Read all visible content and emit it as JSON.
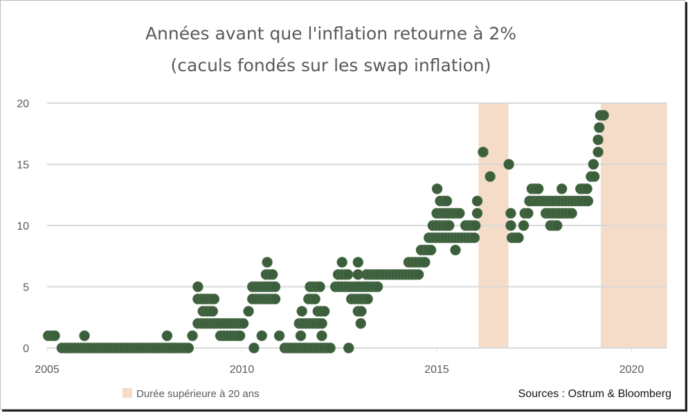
{
  "chart_data": {
    "type": "scatter",
    "title": "Années avant que l'inflation retourne à 2%",
    "subtitle": "(caculs fondés sur les swap inflation)",
    "xlabel": "",
    "ylabel": "",
    "xlim": [
      2005,
      2020.9
    ],
    "ylim": [
      0,
      20
    ],
    "x_ticks": [
      2005,
      2010,
      2015,
      2020
    ],
    "x_tick_labels": [
      "2005",
      "2010",
      "2015",
      "2020"
    ],
    "y_ticks": [
      0,
      5,
      10,
      15,
      20
    ],
    "y_tick_labels": [
      "0",
      "5",
      "10",
      "15",
      "20"
    ],
    "grid": "horizontal",
    "legend": {
      "position": "bottom-left",
      "entries": [
        {
          "label": "Durée supérieure à 20 ans",
          "color": "#f5dcc8"
        }
      ]
    },
    "source": "Sources : Ostrum & Bloomberg",
    "colors": {
      "points": "#3b5e3b",
      "shade": "#f5dcc8",
      "grid": "#d9d9d9"
    },
    "shaded_periods": [
      [
        2016.07,
        2016.84
      ],
      [
        2019.21,
        2020.91
      ]
    ],
    "point_step_years": 0.0833,
    "series_runs": [
      {
        "y": 1,
        "from": 2005.03,
        "to": 2005.27
      },
      {
        "y": 0,
        "from": 2005.38,
        "to": 2008.7
      },
      {
        "y": 1,
        "from": 2005.96,
        "to": 2006.03
      },
      {
        "y": 1,
        "from": 2008.08,
        "to": 2008.08
      },
      {
        "y": 1,
        "from": 2008.73,
        "to": 2008.73
      },
      {
        "y": 5,
        "from": 2008.87,
        "to": 2008.87
      },
      {
        "y": 4,
        "from": 2008.87,
        "to": 2009.35
      },
      {
        "y": 3,
        "from": 2009.0,
        "to": 2009.32
      },
      {
        "y": 2,
        "from": 2008.87,
        "to": 2010.1
      },
      {
        "y": 1,
        "from": 2009.45,
        "to": 2009.97
      },
      {
        "y": 3,
        "from": 2010.17,
        "to": 2010.17
      },
      {
        "y": 5,
        "from": 2010.27,
        "to": 2010.89
      },
      {
        "y": 4,
        "from": 2010.27,
        "to": 2010.92
      },
      {
        "y": 6,
        "from": 2010.62,
        "to": 2010.82
      },
      {
        "y": 7,
        "from": 2010.65,
        "to": 2010.65
      },
      {
        "y": 0,
        "from": 2010.31,
        "to": 2010.31
      },
      {
        "y": 1,
        "from": 2010.51,
        "to": 2010.51
      },
      {
        "y": 1,
        "from": 2010.96,
        "to": 2010.96
      },
      {
        "y": 0,
        "from": 2011.1,
        "to": 2012.29
      },
      {
        "y": 1,
        "from": 2011.51,
        "to": 2011.51
      },
      {
        "y": 1,
        "from": 2012.05,
        "to": 2012.05
      },
      {
        "y": 2,
        "from": 2011.47,
        "to": 2012.09
      },
      {
        "y": 3,
        "from": 2011.54,
        "to": 2011.54
      },
      {
        "y": 3,
        "from": 2011.95,
        "to": 2012.12
      },
      {
        "y": 4,
        "from": 2011.71,
        "to": 2011.95
      },
      {
        "y": 5,
        "from": 2011.75,
        "to": 2012.05
      },
      {
        "y": 0,
        "from": 2012.74,
        "to": 2012.74
      },
      {
        "y": 5,
        "from": 2012.4,
        "to": 2013.49
      },
      {
        "y": 6,
        "from": 2012.47,
        "to": 2012.74
      },
      {
        "y": 6,
        "from": 2012.98,
        "to": 2012.98
      },
      {
        "y": 7,
        "from": 2012.57,
        "to": 2012.57
      },
      {
        "y": 7,
        "from": 2012.98,
        "to": 2012.98
      },
      {
        "y": 4,
        "from": 2012.81,
        "to": 2013.25
      },
      {
        "y": 3,
        "from": 2012.98,
        "to": 2013.12
      },
      {
        "y": 2,
        "from": 2013.05,
        "to": 2013.05
      },
      {
        "y": 6,
        "from": 2013.2,
        "to": 2014.6
      },
      {
        "y": 7,
        "from": 2014.28,
        "to": 2014.72
      },
      {
        "y": 8,
        "from": 2014.6,
        "to": 2014.85
      },
      {
        "y": 9,
        "from": 2014.8,
        "to": 2016.0
      },
      {
        "y": 10,
        "from": 2014.9,
        "to": 2015.33
      },
      {
        "y": 10,
        "from": 2015.74,
        "to": 2016.0
      },
      {
        "y": 11,
        "from": 2015.0,
        "to": 2015.63
      },
      {
        "y": 11,
        "from": 2016.04,
        "to": 2016.04
      },
      {
        "y": 12,
        "from": 2015.09,
        "to": 2015.27
      },
      {
        "y": 12,
        "from": 2016.04,
        "to": 2016.04
      },
      {
        "y": 13,
        "from": 2015.01,
        "to": 2015.01
      },
      {
        "y": 8,
        "from": 2015.48,
        "to": 2015.48
      },
      {
        "y": 16,
        "from": 2016.19,
        "to": 2016.19
      },
      {
        "y": 14,
        "from": 2016.37,
        "to": 2016.37
      },
      {
        "y": 15,
        "from": 2016.85,
        "to": 2016.85
      },
      {
        "y": 9,
        "from": 2016.93,
        "to": 2017.17
      },
      {
        "y": 10,
        "from": 2016.9,
        "to": 2016.9
      },
      {
        "y": 10,
        "from": 2017.23,
        "to": 2017.23
      },
      {
        "y": 11,
        "from": 2016.9,
        "to": 2016.9
      },
      {
        "y": 11,
        "from": 2017.26,
        "to": 2017.38
      },
      {
        "y": 12,
        "from": 2017.38,
        "to": 2018.96
      },
      {
        "y": 13,
        "from": 2017.44,
        "to": 2017.68
      },
      {
        "y": 13,
        "from": 2018.21,
        "to": 2018.21
      },
      {
        "y": 11,
        "from": 2017.8,
        "to": 2018.5
      },
      {
        "y": 10,
        "from": 2017.92,
        "to": 2018.1
      },
      {
        "y": 13,
        "from": 2018.69,
        "to": 2018.93
      },
      {
        "y": 14,
        "from": 2018.96,
        "to": 2019.08
      },
      {
        "y": 15,
        "from": 2019.02,
        "to": 2019.02
      },
      {
        "y": 16,
        "from": 2019.14,
        "to": 2019.14
      },
      {
        "y": 17,
        "from": 2019.14,
        "to": 2019.14
      },
      {
        "y": 18,
        "from": 2019.17,
        "to": 2019.17
      },
      {
        "y": 19,
        "from": 2019.2,
        "to": 2019.32
      }
    ]
  }
}
